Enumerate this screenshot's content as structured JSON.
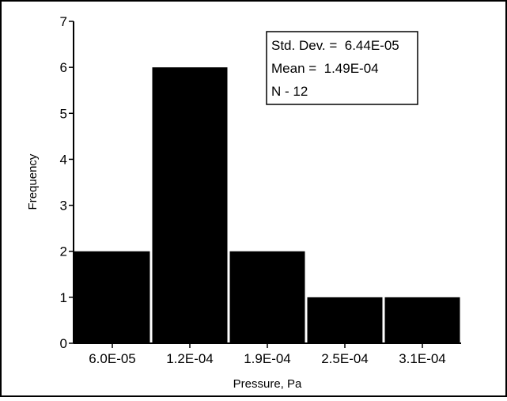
{
  "chart_data": {
    "type": "bar",
    "categories": [
      "6.0E-05",
      "1.2E-04",
      "1.9E-04",
      "2.5E-04",
      "3.1E-04"
    ],
    "values": [
      2,
      6,
      2,
      1,
      1
    ],
    "xlabel": "Pressure, Pa",
    "ylabel": "Frequency",
    "ylim": [
      0,
      7
    ],
    "yticks": [
      "0",
      "1",
      "2",
      "3",
      "4",
      "5",
      "6",
      "7"
    ],
    "grid": false,
    "stats_box": {
      "position": "top-right",
      "lines": [
        "Std. Dev. =  6.44E-05",
        "Mean =  1.49E-04",
        "N - 12"
      ]
    },
    "colors": {
      "bar": "#000000",
      "frame": "#000000",
      "background": "#ffffff"
    }
  }
}
